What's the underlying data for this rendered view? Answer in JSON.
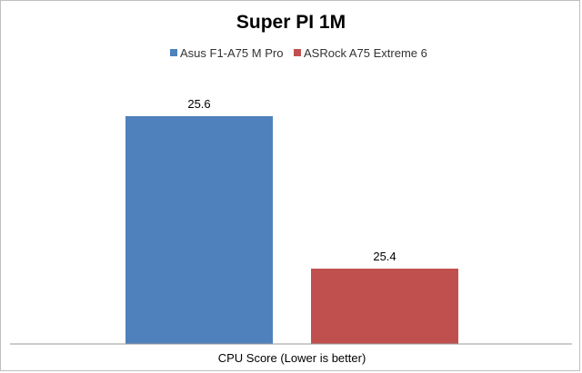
{
  "chart_data": {
    "type": "bar",
    "title": "Super PI 1M",
    "categories": [
      "CPU Score (Lower is better)"
    ],
    "series": [
      {
        "name": "Asus F1-A75 M Pro",
        "color": "#4f81bd",
        "values": [
          25.6
        ]
      },
      {
        "name": "ASRock A75 Extreme 6",
        "color": "#c0504d",
        "values": [
          25.4
        ]
      }
    ],
    "ylim": [
      25.3,
      25.7
    ],
    "grid": false,
    "legend_position": "top",
    "data_labels": true
  }
}
